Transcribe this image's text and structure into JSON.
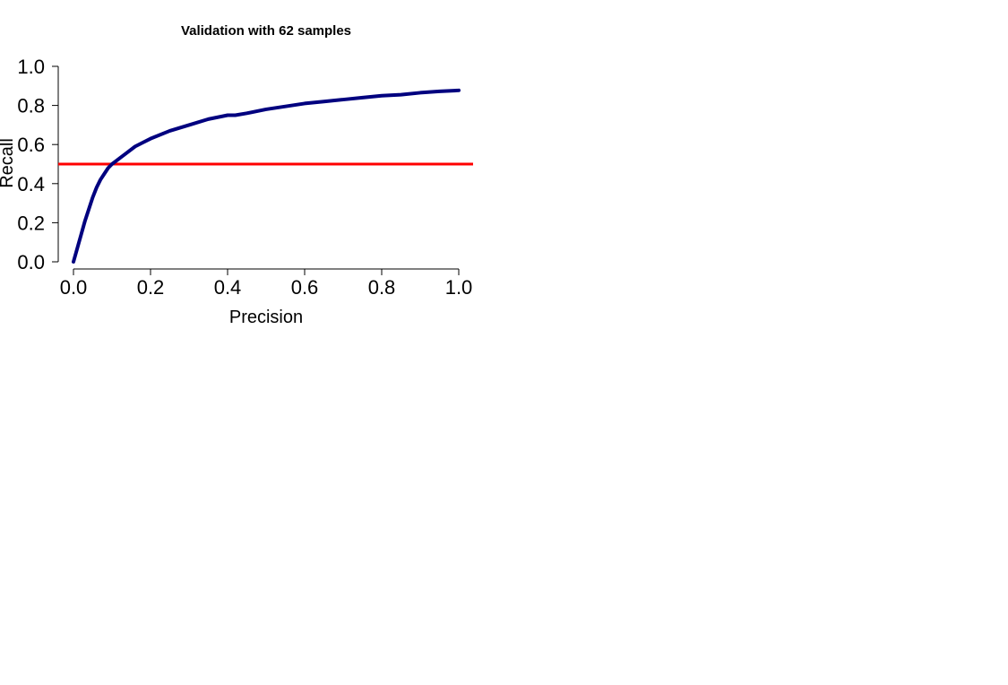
{
  "chart_data": {
    "type": "line",
    "title": "Validation with 62 samples",
    "xlabel": "Precision",
    "ylabel": "Recall",
    "xlim": [
      0.0,
      1.0
    ],
    "ylim": [
      0.0,
      1.0
    ],
    "xticks": [
      "0.0",
      "0.2",
      "0.4",
      "0.6",
      "0.8",
      "1.0"
    ],
    "yticks": [
      "0.0",
      "0.2",
      "0.4",
      "0.6",
      "0.8",
      "1.0"
    ],
    "grid": false,
    "series": [
      {
        "color": "#00007f",
        "x": [
          0.0,
          0.01,
          0.02,
          0.03,
          0.04,
          0.05,
          0.06,
          0.07,
          0.08,
          0.09,
          0.1,
          0.12,
          0.14,
          0.16,
          0.18,
          0.2,
          0.25,
          0.3,
          0.35,
          0.4,
          0.42,
          0.45,
          0.5,
          0.55,
          0.6,
          0.65,
          0.7,
          0.75,
          0.8,
          0.85,
          0.9,
          0.95,
          1.0
        ],
        "y": [
          0.0,
          0.07,
          0.14,
          0.21,
          0.27,
          0.33,
          0.38,
          0.42,
          0.45,
          0.48,
          0.5,
          0.53,
          0.56,
          0.59,
          0.61,
          0.63,
          0.67,
          0.7,
          0.73,
          0.75,
          0.75,
          0.76,
          0.78,
          0.795,
          0.81,
          0.82,
          0.83,
          0.84,
          0.85,
          0.855,
          0.865,
          0.872,
          0.877
        ]
      }
    ],
    "reference_line": {
      "y": 0.5,
      "color": "#ff0000"
    }
  }
}
